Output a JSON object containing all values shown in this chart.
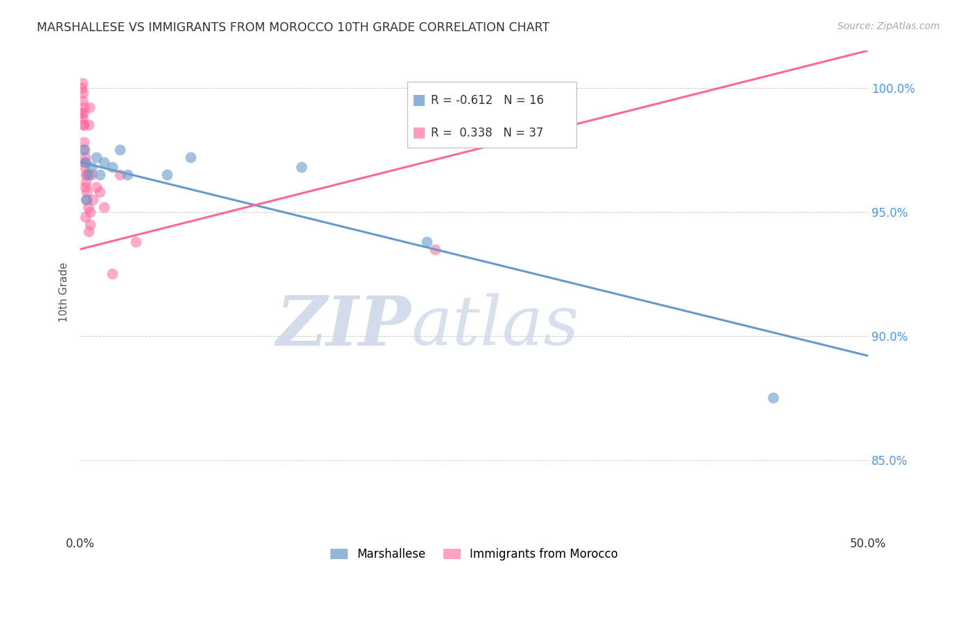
{
  "title": "MARSHALLESE VS IMMIGRANTS FROM MOROCCO 10TH GRADE CORRELATION CHART",
  "source": "Source: ZipAtlas.com",
  "ylabel": "10th Grade",
  "xlim": [
    0.0,
    50.0
  ],
  "ylim": [
    82.0,
    101.5
  ],
  "yticks": [
    85.0,
    90.0,
    95.0,
    100.0
  ],
  "xticks": [
    0.0,
    10.0,
    20.0,
    30.0,
    40.0,
    50.0
  ],
  "blue_color": "#6699CC",
  "pink_color": "#FF6699",
  "blue_label": "Marshallese",
  "pink_label": "Immigrants from Morocco",
  "blue_R": -0.612,
  "blue_N": 16,
  "pink_R": 0.338,
  "pink_N": 37,
  "blue_x": [
    0.2,
    0.3,
    0.5,
    0.7,
    1.0,
    1.2,
    1.5,
    2.0,
    2.5,
    3.0,
    5.5,
    7.0,
    14.0,
    22.0,
    44.0,
    0.4
  ],
  "blue_y": [
    97.5,
    97.0,
    96.5,
    96.8,
    97.2,
    96.5,
    97.0,
    96.8,
    97.5,
    96.5,
    96.5,
    97.2,
    96.8,
    93.8,
    87.5,
    95.5
  ],
  "pink_x": [
    0.05,
    0.08,
    0.1,
    0.1,
    0.12,
    0.15,
    0.15,
    0.18,
    0.2,
    0.2,
    0.22,
    0.25,
    0.25,
    0.28,
    0.3,
    0.3,
    0.32,
    0.35,
    0.35,
    0.4,
    0.4,
    0.45,
    0.5,
    0.55,
    0.6,
    0.7,
    0.8,
    1.0,
    1.2,
    1.5,
    2.0,
    2.5,
    3.5,
    0.6,
    0.5,
    0.3,
    22.5
  ],
  "pink_y": [
    99.0,
    100.0,
    99.5,
    100.2,
    98.8,
    99.0,
    99.8,
    98.5,
    97.8,
    98.5,
    99.2,
    96.8,
    97.5,
    97.2,
    96.0,
    97.0,
    96.5,
    95.5,
    96.2,
    95.8,
    96.5,
    95.2,
    98.5,
    99.2,
    95.0,
    96.5,
    95.5,
    96.0,
    95.8,
    95.2,
    92.5,
    96.5,
    93.8,
    94.5,
    94.2,
    94.8,
    93.5
  ],
  "watermark_zip": "ZIP",
  "watermark_atlas": "atlas",
  "background_color": "#FFFFFF",
  "grid_color": "#CCCCCC"
}
